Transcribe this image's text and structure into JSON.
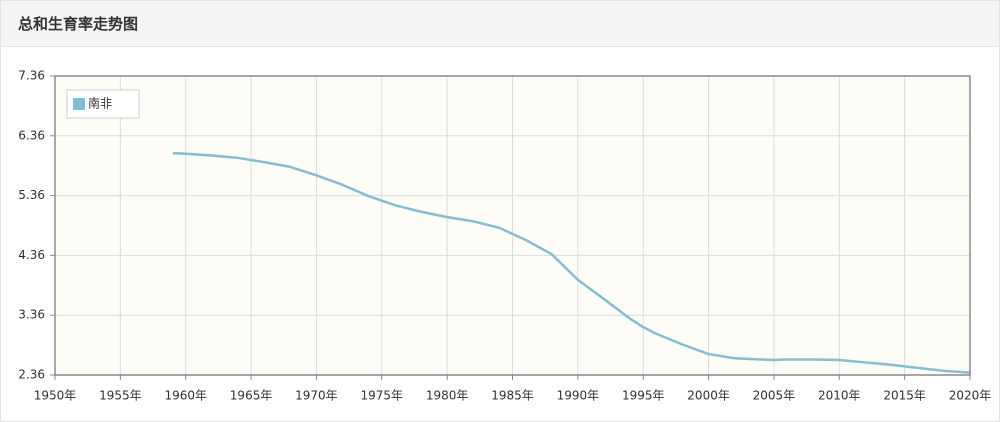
{
  "chart_data": {
    "type": "line",
    "title": "总和生育率走势图",
    "xlim": [
      1950,
      2020
    ],
    "xticks": [
      {
        "value": 1950,
        "label": "1950年"
      },
      {
        "value": 1955,
        "label": "1955年"
      },
      {
        "value": 1960,
        "label": "1960年"
      },
      {
        "value": 1965,
        "label": "1965年"
      },
      {
        "value": 1970,
        "label": "1970年"
      },
      {
        "value": 1975,
        "label": "1975年"
      },
      {
        "value": 1980,
        "label": "1980年"
      },
      {
        "value": 1985,
        "label": "1985年"
      },
      {
        "value": 1990,
        "label": "1990年"
      },
      {
        "value": 1995,
        "label": "1995年"
      },
      {
        "value": 2000,
        "label": "2000年"
      },
      {
        "value": 2005,
        "label": "2005年"
      },
      {
        "value": 2010,
        "label": "2010年"
      },
      {
        "value": 2015,
        "label": "2015年"
      },
      {
        "value": 2020,
        "label": "2020年"
      }
    ],
    "ylim": [
      2.36,
      7.36
    ],
    "yticks": [
      2.36,
      3.36,
      4.36,
      5.36,
      6.36,
      7.36
    ],
    "grid": true,
    "legend": "top-left",
    "x": [
      1959,
      1960,
      1962,
      1964,
      1966,
      1968,
      1970,
      1972,
      1974,
      1976,
      1978,
      1980,
      1982,
      1984,
      1985,
      1986,
      1988,
      1990,
      1992,
      1994,
      1995,
      1996,
      1998,
      2000,
      2002,
      2004,
      2005,
      2006,
      2008,
      2010,
      2012,
      2014,
      2016,
      2018,
      2020
    ],
    "series": [
      {
        "name": "南非",
        "color": "#7fc0d4",
        "values": [
          6.07,
          6.06,
          6.03,
          5.99,
          5.92,
          5.84,
          5.7,
          5.54,
          5.35,
          5.2,
          5.09,
          5.0,
          4.93,
          4.82,
          4.72,
          4.62,
          4.38,
          3.95,
          3.63,
          3.3,
          3.16,
          3.05,
          2.87,
          2.71,
          2.64,
          2.62,
          2.61,
          2.62,
          2.62,
          2.61,
          2.57,
          2.53,
          2.48,
          2.43,
          2.4
        ]
      }
    ]
  }
}
